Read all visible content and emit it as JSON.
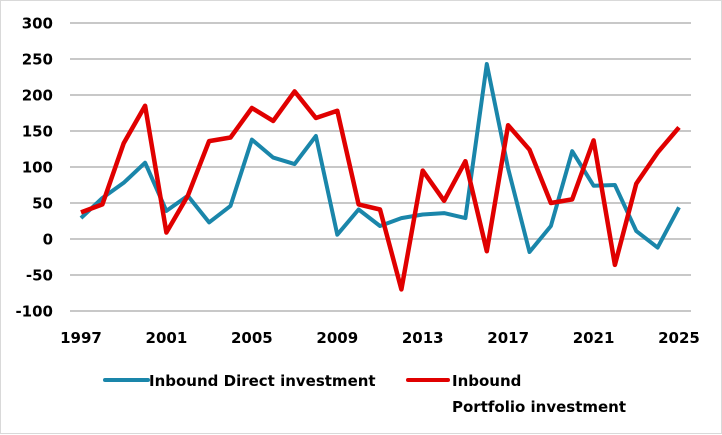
{
  "chart_data": {
    "type": "line",
    "title": "",
    "xlabel": "",
    "ylabel": "",
    "ylim": [
      -100,
      300
    ],
    "yticks": [
      300,
      250,
      200,
      150,
      100,
      50,
      0,
      -50,
      -100
    ],
    "xlim": [
      1997,
      2025
    ],
    "xticks": [
      1997,
      2001,
      2005,
      2009,
      2013,
      2017,
      2021,
      2025
    ],
    "grid": "horizontal",
    "legend_position": "bottom",
    "x": [
      1997,
      1998,
      1999,
      2000,
      2001,
      2002,
      2003,
      2004,
      2005,
      2006,
      2007,
      2008,
      2009,
      2010,
      2011,
      2012,
      2013,
      2014,
      2015,
      2016,
      2017,
      2018,
      2019,
      2020,
      2021,
      2022,
      2023,
      2024,
      2025
    ],
    "series": [
      {
        "name": "Inbound Direct investment",
        "legend_lines": [
          "Inbound Direct investment"
        ],
        "color": "#1a86aa",
        "values": [
          29,
          57,
          78,
          106,
          39,
          60,
          23,
          46,
          138,
          113,
          104,
          143,
          6,
          41,
          18,
          29,
          34,
          36,
          29,
          243,
          98,
          -18,
          18,
          122,
          74,
          75,
          11,
          -12,
          44
        ]
      },
      {
        "name": "Inbound Portfolio investment",
        "legend_lines": [
          "Inbound",
          "Portfolio investment"
        ],
        "color": "#e00000",
        "values": [
          37,
          48,
          133,
          185,
          9,
          60,
          136,
          141,
          182,
          164,
          205,
          168,
          178,
          48,
          41,
          -70,
          95,
          53,
          108,
          -17,
          158,
          124,
          50,
          55,
          137,
          -36,
          77,
          120,
          155
        ]
      }
    ],
    "gridline_color": "#c8c8c8",
    "border_color": "#d9d9d9"
  }
}
